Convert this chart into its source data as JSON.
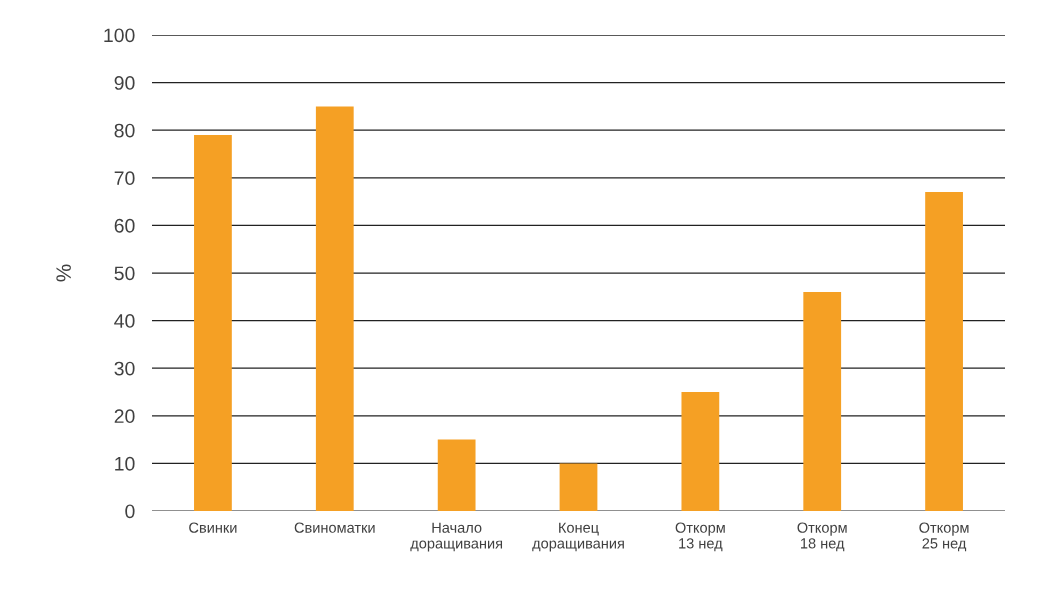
{
  "chart_data": {
    "type": "bar",
    "ylabel": "%",
    "categories": [
      "Свинки",
      "Свиноматки",
      "Начало\nдоращивания",
      "Конец\nдоращивания",
      "Откорм\n13 нед",
      "Откорм\n18 нед",
      "Откорм\n25 нед"
    ],
    "values": [
      79,
      85,
      15,
      10,
      25,
      46,
      67
    ],
    "color": "#f5a024",
    "ylim": [
      0,
      100
    ],
    "yticks": [
      0,
      10,
      20,
      30,
      40,
      50,
      60,
      70,
      80,
      90,
      100
    ],
    "grid": "y"
  }
}
